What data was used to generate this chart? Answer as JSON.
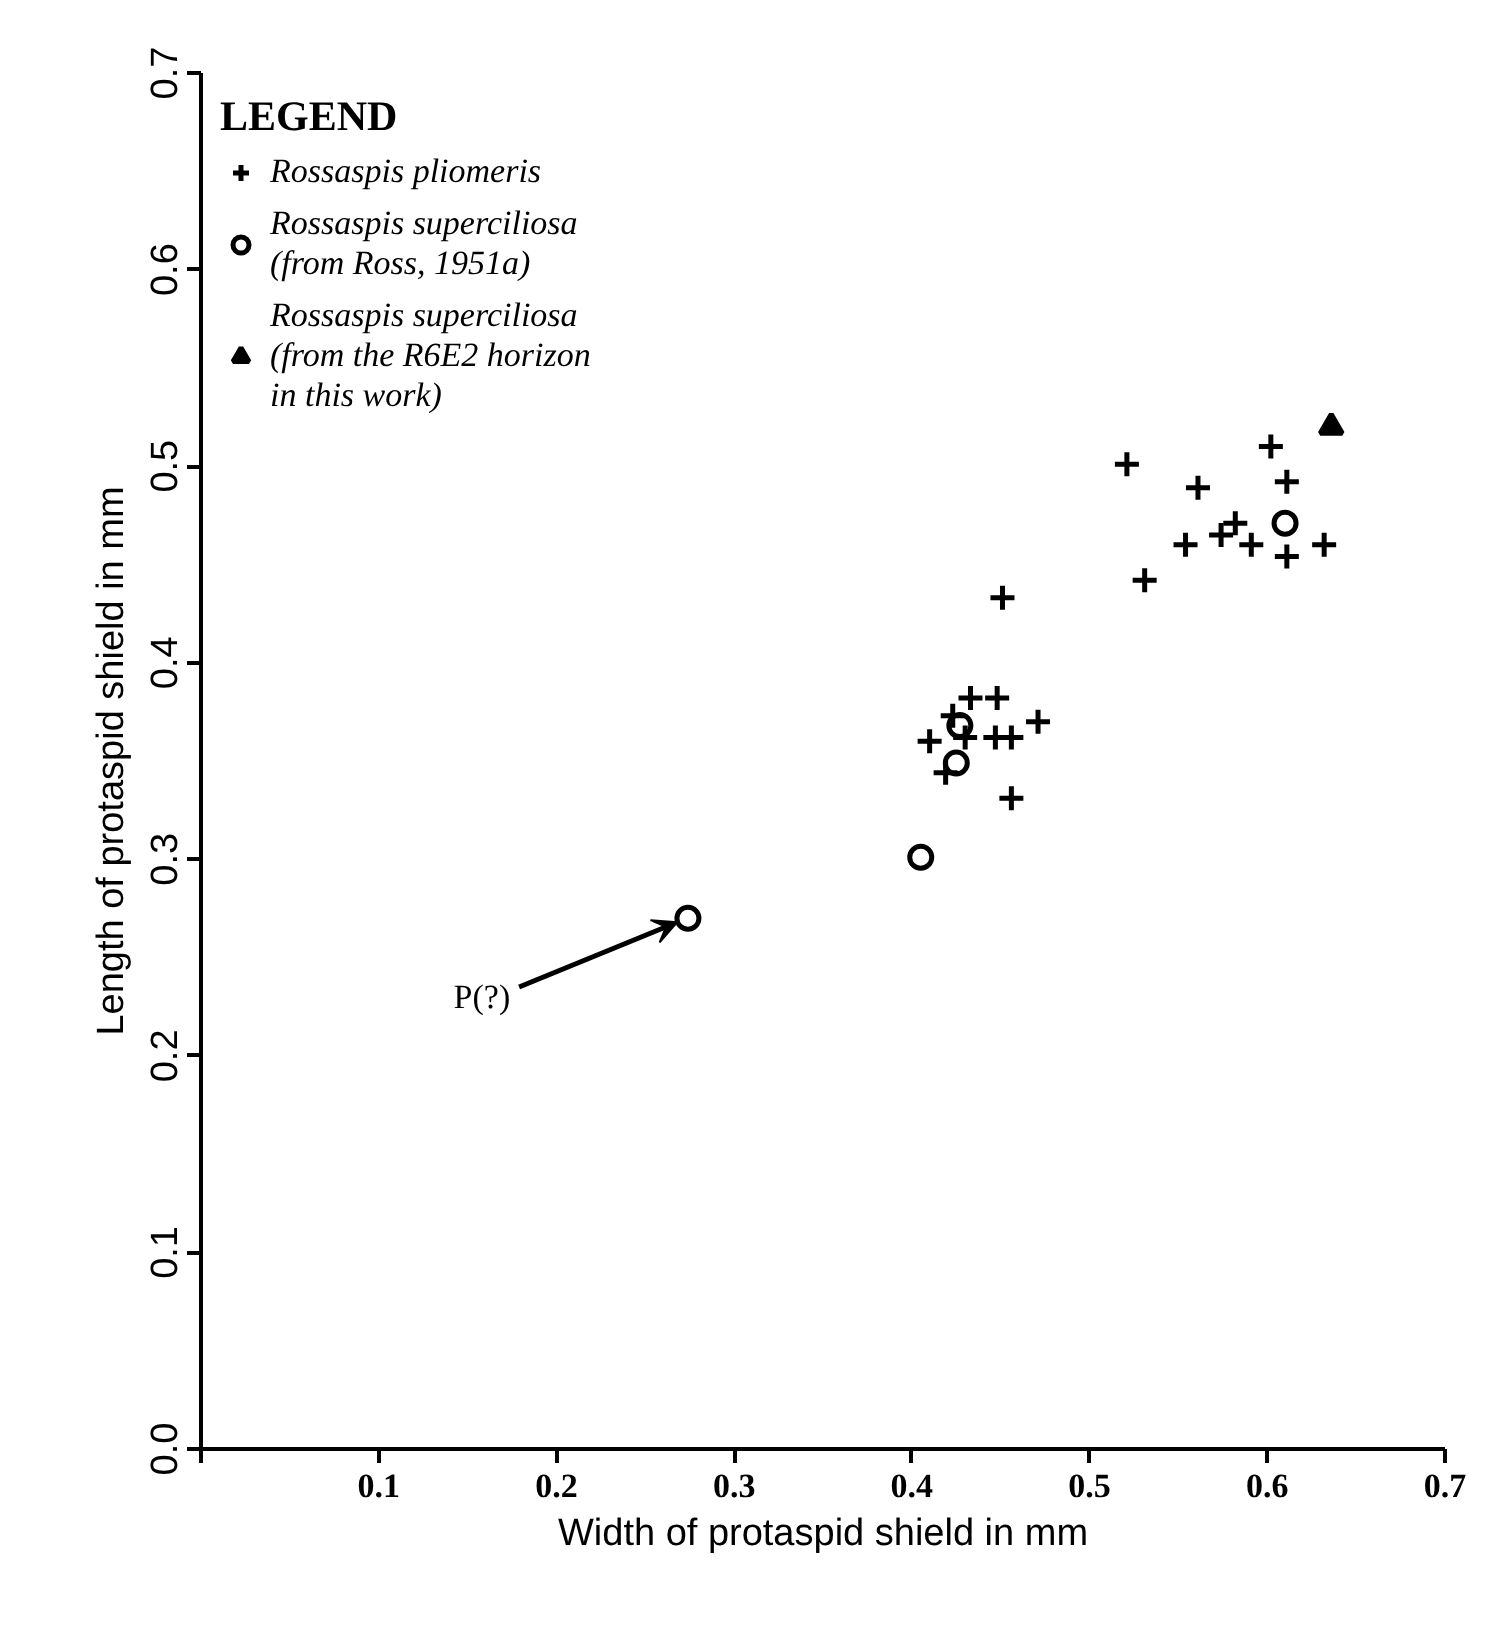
{
  "chart_data": {
    "type": "scatter",
    "xlabel": "Width of protaspid shield in mm",
    "ylabel": "Length of protaspid shield in mm",
    "legend_title": "LEGEND",
    "legend": "top left",
    "grid": false,
    "xlim": [
      0,
      0.7
    ],
    "ylim": [
      0,
      0.7
    ],
    "xticks": [
      {
        "value": 0,
        "label": null
      },
      0.1,
      0.2,
      0.3,
      0.4,
      0.5,
      0.6,
      0.7
    ],
    "yticks": [
      {
        "value": 0,
        "label": "0.0"
      },
      0.1,
      0.2,
      0.3,
      0.4,
      0.5,
      0.6,
      0.7
    ],
    "series": [
      {
        "name": "Rossaspis pliomeris",
        "color": "#000000",
        "marker": "cross",
        "x": [
          0.521,
          0.602,
          0.561,
          0.611,
          0.574,
          0.582,
          0.554,
          0.591,
          0.611,
          0.632,
          0.531,
          0.451,
          0.433,
          0.448,
          0.423,
          0.471,
          0.41,
          0.43,
          0.447,
          0.456,
          0.419,
          0.456
        ],
        "values": [
          0.501,
          0.51,
          0.489,
          0.492,
          0.465,
          0.471,
          0.46,
          0.46,
          0.454,
          0.46,
          0.442,
          0.433,
          0.382,
          0.382,
          0.373,
          0.37,
          0.36,
          0.362,
          0.362,
          0.362,
          0.344,
          0.331
        ]
      },
      {
        "name": "Rossaspis superciliosa\n(from Ross, 1951a)",
        "color": "#000000",
        "marker": "circle",
        "x": [
          0.61,
          0.427,
          0.425,
          0.405,
          0.274
        ],
        "values": [
          0.471,
          0.368,
          0.349,
          0.301,
          0.27
        ]
      },
      {
        "name": "Rossaspis superciliosa\n(from the R6E2 horizon\nin this work)",
        "color": "#000000",
        "marker": "triangle",
        "x": [
          0.636
        ],
        "values": [
          0.52
        ]
      }
    ],
    "annotations": [
      {
        "text": "P(?)",
        "x": 0.274,
        "y": 0.27
      }
    ]
  }
}
